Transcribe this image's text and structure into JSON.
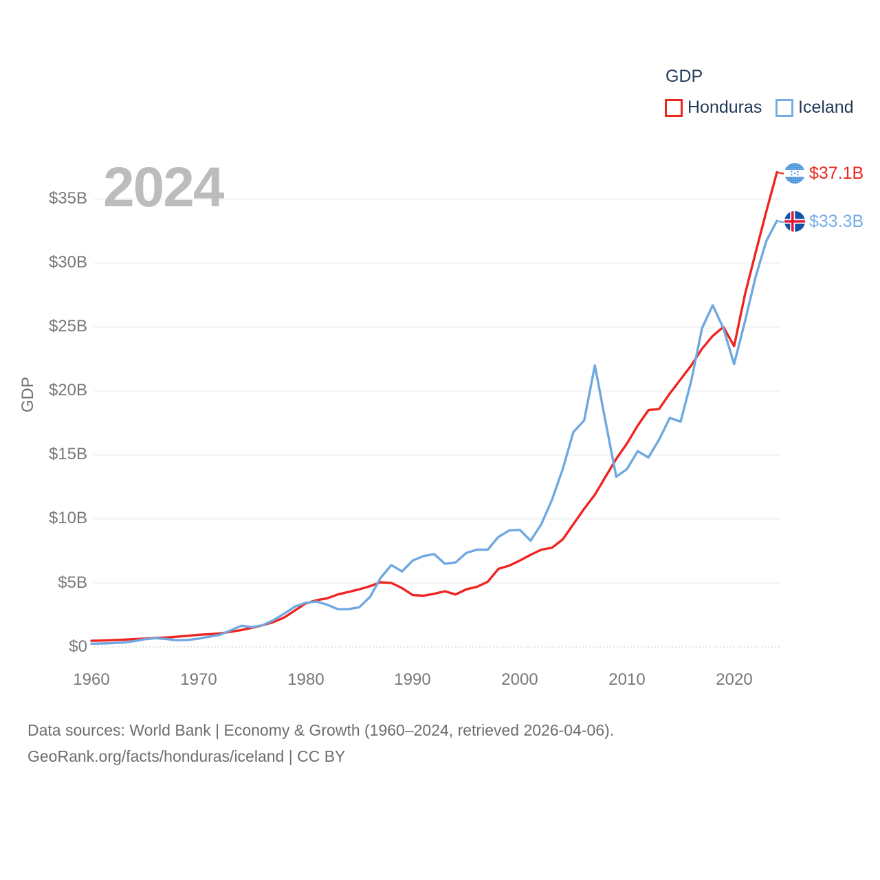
{
  "watermark": "2024",
  "legend": {
    "title": "GDP",
    "series": [
      {
        "label": "Honduras",
        "color": "#ee2420"
      },
      {
        "label": "Iceland",
        "color": "#77ade5"
      }
    ]
  },
  "end_labels": [
    {
      "series": "Honduras",
      "value": "$37.1B",
      "flag": "honduras-flag",
      "color": "#ee2420"
    },
    {
      "series": "Iceland",
      "value": "$33.3B",
      "flag": "iceland-flag",
      "color": "#77ade5"
    }
  ],
  "axes": {
    "y_title": "GDP",
    "y_tick_labels": [
      "$0",
      "$5B",
      "$10B",
      "$15B",
      "$20B",
      "$25B",
      "$30B",
      "$35B"
    ],
    "x_tick_labels": [
      "1960",
      "1970",
      "1980",
      "1990",
      "2000",
      "2010",
      "2020"
    ]
  },
  "footer": {
    "line1": "Data sources: World Bank | Economy & Growth (1960–2024, retrieved 2026-04-06).",
    "line2": "GeoRank.org/facts/honduras/iceland | CC BY"
  },
  "chart_data": {
    "type": "line",
    "title": "GDP",
    "xlabel": "",
    "ylabel": "GDP",
    "unit": "current US$ billions",
    "xlim": [
      1960,
      2024
    ],
    "ylim": [
      0,
      38
    ],
    "yticks": [
      0,
      5,
      10,
      15,
      20,
      25,
      30,
      35
    ],
    "xticks": [
      1960,
      1970,
      1980,
      1990,
      2000,
      2010,
      2020
    ],
    "grid": "horizontal",
    "legend_position": "top-right",
    "x": [
      1960,
      1961,
      1962,
      1963,
      1964,
      1965,
      1966,
      1967,
      1968,
      1969,
      1970,
      1971,
      1972,
      1973,
      1974,
      1975,
      1976,
      1977,
      1978,
      1979,
      1980,
      1981,
      1982,
      1983,
      1984,
      1985,
      1986,
      1987,
      1988,
      1989,
      1990,
      1991,
      1992,
      1993,
      1994,
      1995,
      1996,
      1997,
      1998,
      1999,
      2000,
      2001,
      2002,
      2003,
      2004,
      2005,
      2006,
      2007,
      2008,
      2009,
      2010,
      2011,
      2012,
      2013,
      2014,
      2015,
      2016,
      2017,
      2018,
      2019,
      2020,
      2021,
      2022,
      2023,
      2024
    ],
    "series": [
      {
        "name": "Honduras",
        "color": "#ee2420",
        "end_value_label": "$37.1B",
        "values": [
          0.48,
          0.5,
          0.53,
          0.57,
          0.61,
          0.65,
          0.7,
          0.74,
          0.8,
          0.87,
          0.95,
          1.0,
          1.06,
          1.18,
          1.32,
          1.5,
          1.7,
          1.95,
          2.3,
          2.85,
          3.4,
          3.65,
          3.8,
          4.1,
          4.3,
          4.5,
          4.75,
          5.05,
          5.0,
          4.6,
          4.05,
          4.0,
          4.15,
          4.35,
          4.1,
          4.5,
          4.7,
          5.1,
          6.1,
          6.35,
          6.75,
          7.2,
          7.6,
          7.75,
          8.4,
          9.6,
          10.8,
          11.9,
          13.3,
          14.7,
          15.9,
          17.3,
          18.5,
          18.6,
          19.8,
          20.9,
          22.0,
          23.3,
          24.3,
          25.0,
          23.5,
          27.5,
          30.8,
          34.0,
          37.1
        ]
      },
      {
        "name": "Iceland",
        "color": "#6fa8e0",
        "end_value_label": "$33.3B",
        "values": [
          0.25,
          0.27,
          0.3,
          0.35,
          0.45,
          0.6,
          0.68,
          0.62,
          0.52,
          0.55,
          0.65,
          0.8,
          0.95,
          1.3,
          1.65,
          1.55,
          1.7,
          2.1,
          2.6,
          3.15,
          3.45,
          3.55,
          3.3,
          2.95,
          2.95,
          3.1,
          3.9,
          5.4,
          6.4,
          5.9,
          6.75,
          7.1,
          7.25,
          6.5,
          6.6,
          7.35,
          7.6,
          7.6,
          8.6,
          9.1,
          9.15,
          8.3,
          9.6,
          11.5,
          13.9,
          16.8,
          17.7,
          22.0,
          17.6,
          13.3,
          13.9,
          15.3,
          14.8,
          16.2,
          17.9,
          17.6,
          20.8,
          24.9,
          26.7,
          24.9,
          22.1,
          25.4,
          28.9,
          31.7,
          33.3
        ]
      }
    ]
  }
}
